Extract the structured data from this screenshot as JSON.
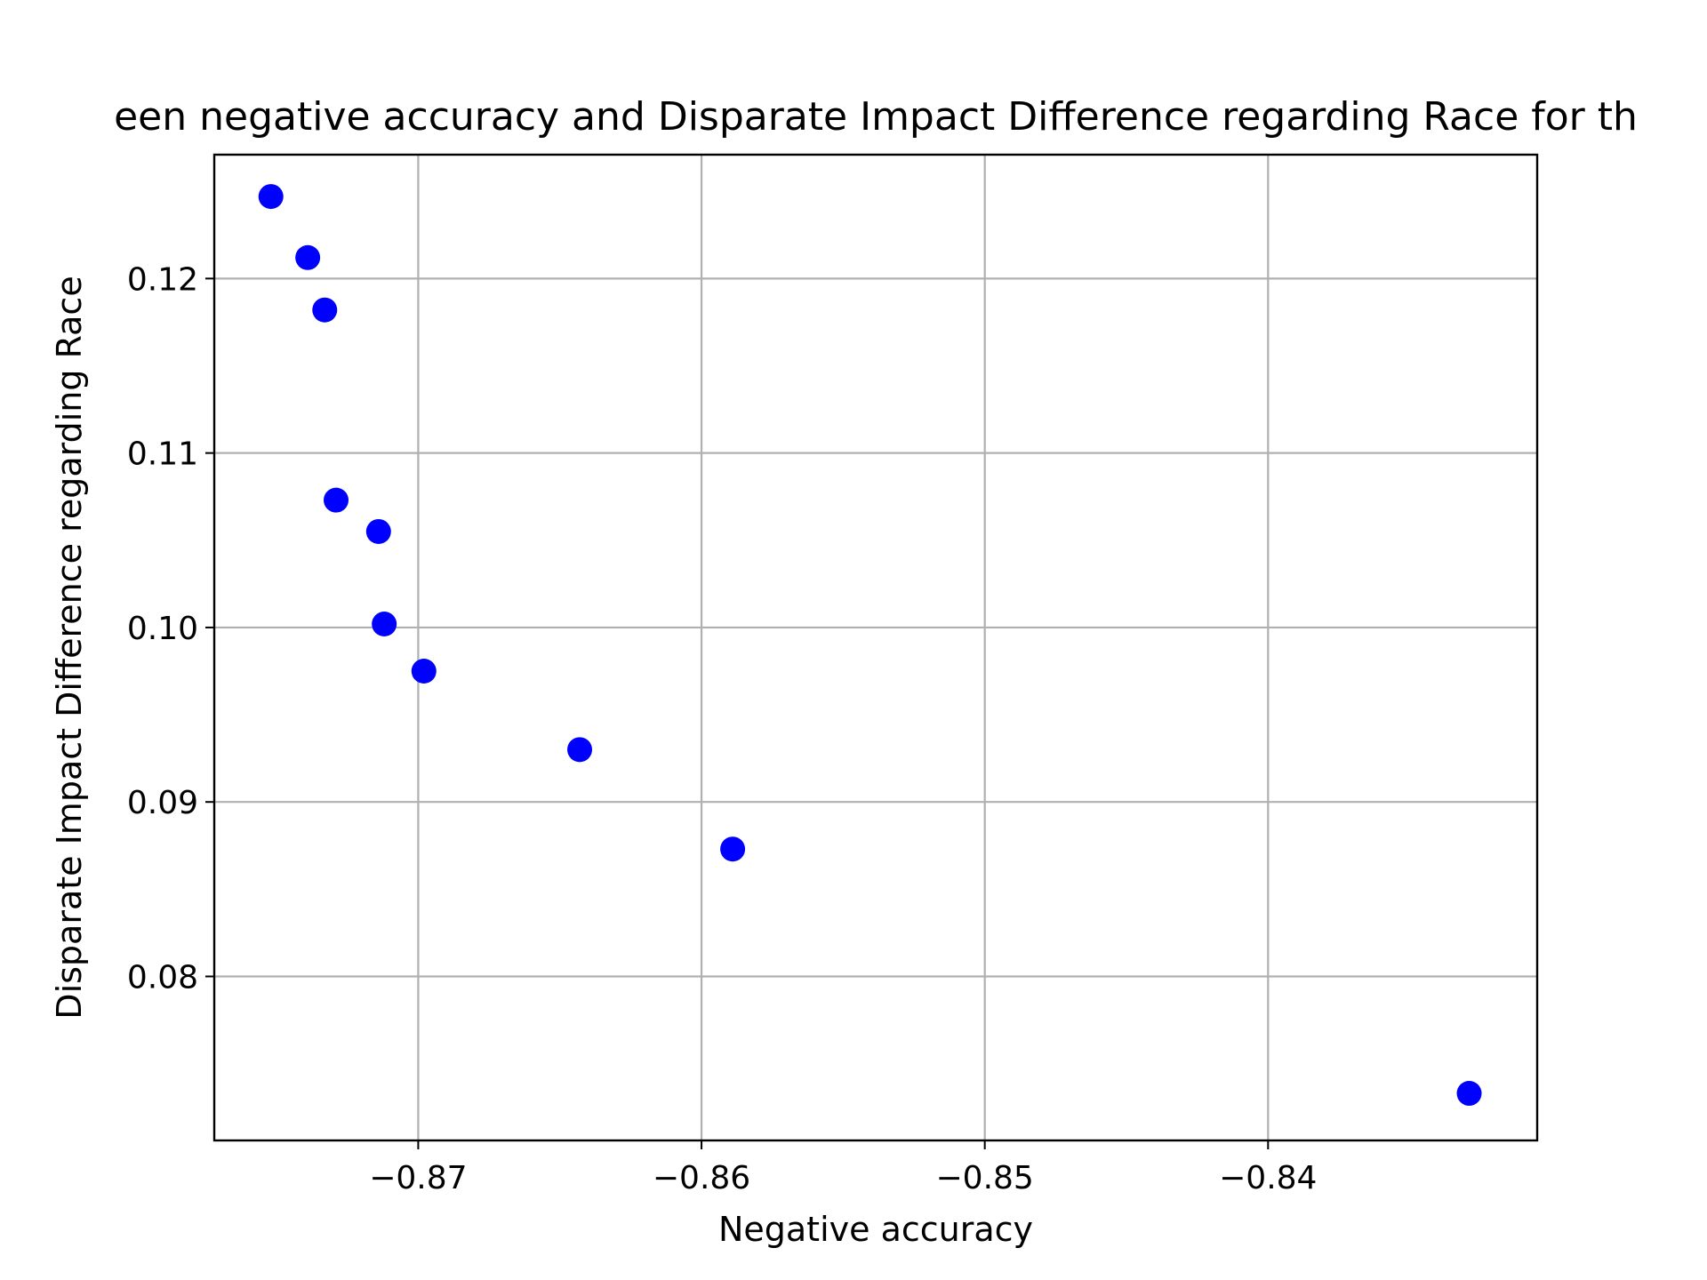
{
  "chart_data": {
    "type": "scatter",
    "title": "een negative accuracy and Disparate Impact Difference regarding Race for th",
    "xlabel": "Negative accuracy",
    "ylabel": "Disparate Impact Difference regarding Race",
    "xlim": [
      -0.8772,
      -0.8305
    ],
    "ylim": [
      0.0706,
      0.1271
    ],
    "xticks": [
      -0.87,
      -0.86,
      -0.85,
      -0.84
    ],
    "xtick_labels": [
      "−0.87",
      "−0.86",
      "−0.85",
      "−0.84"
    ],
    "yticks": [
      0.08,
      0.09,
      0.1,
      0.11,
      0.12
    ],
    "ytick_labels": [
      "0.08",
      "0.09",
      "0.10",
      "0.11",
      "0.12"
    ],
    "grid": true,
    "marker_color": "#0000ff",
    "points": [
      {
        "x": -0.8752,
        "y": 0.1247
      },
      {
        "x": -0.8739,
        "y": 0.1212
      },
      {
        "x": -0.8733,
        "y": 0.1182
      },
      {
        "x": -0.8729,
        "y": 0.1073
      },
      {
        "x": -0.8714,
        "y": 0.1055
      },
      {
        "x": -0.8712,
        "y": 0.1002
      },
      {
        "x": -0.8698,
        "y": 0.0975
      },
      {
        "x": -0.8643,
        "y": 0.093
      },
      {
        "x": -0.8589,
        "y": 0.0873
      },
      {
        "x": -0.8329,
        "y": 0.0733
      }
    ]
  }
}
